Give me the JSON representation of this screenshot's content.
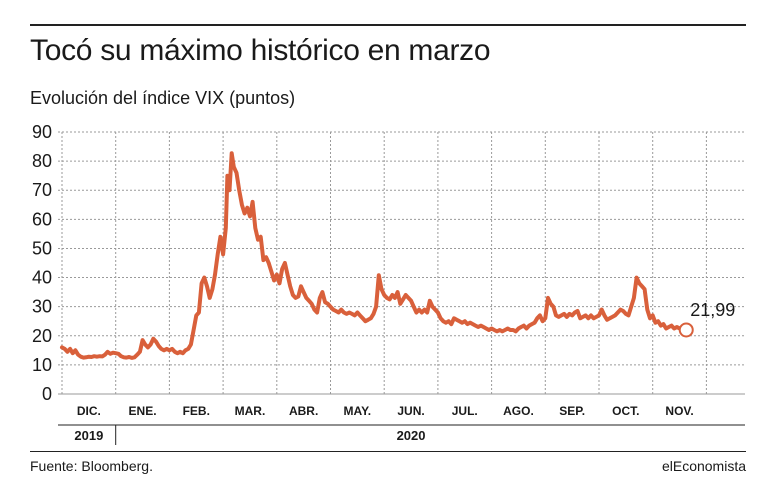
{
  "header": {
    "title": "Tocó su máximo histórico en marzo",
    "subtitle": "Evolución del índice VIX (puntos)"
  },
  "footer": {
    "source": "Fuente: Bloomberg.",
    "brand": "elEconomista"
  },
  "colors": {
    "line": "#d9603b",
    "grid": "#9a9a9a",
    "axis": "#222222"
  },
  "chart_data": {
    "type": "line",
    "title": "Tocó su máximo histórico en marzo",
    "subtitle": "Evolución del índice VIX (puntos)",
    "ylim": [
      0,
      90
    ],
    "yticks": [
      0,
      10,
      20,
      30,
      40,
      50,
      60,
      70,
      80,
      90
    ],
    "grid": "vertical dashed between months",
    "months": [
      "DIC.",
      "ENE.",
      "FEB.",
      "MAR.",
      "ABR.",
      "MAY.",
      "JUN.",
      "JUL.",
      "AGO.",
      "SEP.",
      "OCT.",
      "NOV."
    ],
    "years": [
      {
        "label": "2019",
        "from": 0,
        "to": 0
      },
      {
        "label": "2020",
        "from": 1,
        "to": 11
      }
    ],
    "series": [
      {
        "points": [
          [
            0.0,
            16.0
          ],
          [
            0.05,
            15.5
          ],
          [
            0.1,
            14.5
          ],
          [
            0.15,
            15.5
          ],
          [
            0.2,
            14.0
          ],
          [
            0.25,
            15.0
          ],
          [
            0.3,
            13.5
          ],
          [
            0.35,
            12.8
          ],
          [
            0.4,
            12.5
          ],
          [
            0.45,
            12.6
          ],
          [
            0.5,
            12.8
          ],
          [
            0.55,
            12.7
          ],
          [
            0.6,
            13.0
          ],
          [
            0.65,
            12.8
          ],
          [
            0.7,
            13.0
          ],
          [
            0.75,
            12.9
          ],
          [
            0.8,
            13.5
          ],
          [
            0.85,
            14.5
          ],
          [
            0.9,
            13.8
          ],
          [
            0.95,
            14.2
          ],
          [
            1.0,
            14.0
          ],
          [
            1.05,
            13.8
          ],
          [
            1.1,
            13.0
          ],
          [
            1.15,
            12.6
          ],
          [
            1.2,
            12.5
          ],
          [
            1.25,
            12.7
          ],
          [
            1.3,
            12.4
          ],
          [
            1.35,
            12.6
          ],
          [
            1.4,
            13.5
          ],
          [
            1.45,
            14.5
          ],
          [
            1.5,
            18.5
          ],
          [
            1.55,
            17.0
          ],
          [
            1.6,
            16.0
          ],
          [
            1.65,
            17.0
          ],
          [
            1.7,
            19.0
          ],
          [
            1.75,
            18.0
          ],
          [
            1.8,
            16.5
          ],
          [
            1.85,
            15.5
          ],
          [
            1.9,
            15.0
          ],
          [
            1.95,
            15.5
          ],
          [
            2.0,
            15.0
          ],
          [
            2.05,
            15.5
          ],
          [
            2.1,
            14.5
          ],
          [
            2.15,
            14.0
          ],
          [
            2.2,
            14.5
          ],
          [
            2.25,
            14.0
          ],
          [
            2.3,
            15.0
          ],
          [
            2.35,
            15.5
          ],
          [
            2.4,
            17.0
          ],
          [
            2.45,
            22.0
          ],
          [
            2.5,
            27.0
          ],
          [
            2.55,
            28.0
          ],
          [
            2.6,
            38.0
          ],
          [
            2.65,
            40.0
          ],
          [
            2.7,
            37.0
          ],
          [
            2.75,
            33.0
          ],
          [
            2.8,
            36.0
          ],
          [
            2.85,
            41.0
          ],
          [
            2.9,
            48.0
          ],
          [
            2.95,
            54.0
          ],
          [
            3.0,
            48.0
          ],
          [
            3.05,
            57.0
          ],
          [
            3.08,
            75.0
          ],
          [
            3.12,
            70.0
          ],
          [
            3.16,
            82.7
          ],
          [
            3.2,
            78.0
          ],
          [
            3.25,
            76.0
          ],
          [
            3.3,
            70.0
          ],
          [
            3.35,
            65.0
          ],
          [
            3.4,
            62.0
          ],
          [
            3.45,
            64.0
          ],
          [
            3.5,
            61.0
          ],
          [
            3.55,
            66.0
          ],
          [
            3.6,
            57.0
          ],
          [
            3.65,
            53.0
          ],
          [
            3.7,
            54.0
          ],
          [
            3.75,
            46.0
          ],
          [
            3.8,
            47.0
          ],
          [
            3.85,
            45.0
          ],
          [
            3.9,
            42.0
          ],
          [
            3.95,
            39.0
          ],
          [
            4.0,
            41.0
          ],
          [
            4.05,
            38.0
          ],
          [
            4.1,
            43.0
          ],
          [
            4.15,
            45.0
          ],
          [
            4.2,
            41.0
          ],
          [
            4.25,
            37.0
          ],
          [
            4.3,
            34.0
          ],
          [
            4.35,
            33.0
          ],
          [
            4.4,
            33.5
          ],
          [
            4.45,
            37.0
          ],
          [
            4.5,
            35.0
          ],
          [
            4.55,
            33.0
          ],
          [
            4.6,
            32.0
          ],
          [
            4.65,
            31.0
          ],
          [
            4.7,
            29.0
          ],
          [
            4.75,
            28.0
          ],
          [
            4.8,
            33.0
          ],
          [
            4.85,
            35.0
          ],
          [
            4.9,
            31.5
          ],
          [
            4.95,
            31.0
          ],
          [
            5.0,
            30.0
          ],
          [
            5.05,
            29.0
          ],
          [
            5.1,
            28.5
          ],
          [
            5.15,
            28.0
          ],
          [
            5.2,
            29.0
          ],
          [
            5.25,
            28.0
          ],
          [
            5.3,
            27.5
          ],
          [
            5.35,
            28.0
          ],
          [
            5.4,
            27.5
          ],
          [
            5.45,
            27.0
          ],
          [
            5.5,
            28.0
          ],
          [
            5.55,
            27.0
          ],
          [
            5.6,
            26.0
          ],
          [
            5.65,
            25.0
          ],
          [
            5.7,
            25.5
          ],
          [
            5.75,
            26.0
          ],
          [
            5.8,
            27.5
          ],
          [
            5.85,
            30.0
          ],
          [
            5.9,
            40.8
          ],
          [
            5.95,
            36.0
          ],
          [
            6.0,
            34.0
          ],
          [
            6.05,
            33.0
          ],
          [
            6.1,
            32.5
          ],
          [
            6.15,
            34.0
          ],
          [
            6.2,
            33.0
          ],
          [
            6.25,
            35.0
          ],
          [
            6.3,
            31.0
          ],
          [
            6.35,
            32.5
          ],
          [
            6.4,
            34.0
          ],
          [
            6.45,
            33.0
          ],
          [
            6.5,
            32.0
          ],
          [
            6.55,
            30.0
          ],
          [
            6.6,
            28.0
          ],
          [
            6.65,
            29.0
          ],
          [
            6.7,
            28.0
          ],
          [
            6.75,
            29.0
          ],
          [
            6.8,
            28.0
          ],
          [
            6.85,
            32.0
          ],
          [
            6.9,
            30.0
          ],
          [
            6.95,
            29.0
          ],
          [
            7.0,
            28.0
          ],
          [
            7.05,
            26.0
          ],
          [
            7.1,
            25.0
          ],
          [
            7.15,
            24.5
          ],
          [
            7.2,
            25.0
          ],
          [
            7.25,
            24.0
          ],
          [
            7.3,
            26.0
          ],
          [
            7.35,
            25.5
          ],
          [
            7.4,
            25.0
          ],
          [
            7.45,
            24.5
          ],
          [
            7.5,
            25.0
          ],
          [
            7.55,
            24.0
          ],
          [
            7.6,
            24.5
          ],
          [
            7.65,
            24.0
          ],
          [
            7.7,
            23.5
          ],
          [
            7.75,
            23.0
          ],
          [
            7.8,
            23.5
          ],
          [
            7.85,
            23.0
          ],
          [
            7.9,
            22.5
          ],
          [
            7.95,
            22.0
          ],
          [
            8.0,
            22.5
          ],
          [
            8.05,
            22.0
          ],
          [
            8.1,
            21.5
          ],
          [
            8.15,
            22.0
          ],
          [
            8.2,
            21.5
          ],
          [
            8.25,
            22.0
          ],
          [
            8.3,
            22.5
          ],
          [
            8.35,
            22.0
          ],
          [
            8.4,
            22.0
          ],
          [
            8.45,
            21.5
          ],
          [
            8.5,
            22.5
          ],
          [
            8.55,
            23.0
          ],
          [
            8.6,
            23.5
          ],
          [
            8.65,
            22.5
          ],
          [
            8.7,
            23.5
          ],
          [
            8.75,
            24.0
          ],
          [
            8.8,
            24.5
          ],
          [
            8.85,
            26.0
          ],
          [
            8.9,
            27.0
          ],
          [
            8.95,
            25.0
          ],
          [
            9.0,
            26.0
          ],
          [
            9.05,
            33.0
          ],
          [
            9.1,
            31.0
          ],
          [
            9.15,
            30.0
          ],
          [
            9.2,
            27.0
          ],
          [
            9.25,
            26.5
          ],
          [
            9.3,
            27.0
          ],
          [
            9.35,
            27.5
          ],
          [
            9.4,
            26.5
          ],
          [
            9.45,
            27.5
          ],
          [
            9.5,
            27.0
          ],
          [
            9.55,
            28.0
          ],
          [
            9.6,
            28.5
          ],
          [
            9.65,
            26.0
          ],
          [
            9.7,
            26.5
          ],
          [
            9.75,
            27.0
          ],
          [
            9.8,
            26.0
          ],
          [
            9.85,
            27.0
          ],
          [
            9.9,
            26.0
          ],
          [
            9.95,
            26.5
          ],
          [
            10.0,
            27.0
          ],
          [
            10.05,
            29.0
          ],
          [
            10.1,
            27.0
          ],
          [
            10.15,
            25.5
          ],
          [
            10.2,
            26.0
          ],
          [
            10.25,
            26.5
          ],
          [
            10.3,
            27.0
          ],
          [
            10.35,
            28.0
          ],
          [
            10.4,
            29.0
          ],
          [
            10.45,
            28.5
          ],
          [
            10.5,
            27.5
          ],
          [
            10.55,
            27.0
          ],
          [
            10.6,
            30.0
          ],
          [
            10.65,
            33.0
          ],
          [
            10.7,
            40.0
          ],
          [
            10.75,
            38.0
          ],
          [
            10.8,
            37.0
          ],
          [
            10.85,
            36.0
          ],
          [
            10.9,
            29.0
          ],
          [
            10.95,
            26.0
          ],
          [
            11.0,
            27.0
          ],
          [
            11.05,
            24.5
          ],
          [
            11.1,
            25.0
          ],
          [
            11.15,
            23.5
          ],
          [
            11.2,
            24.0
          ],
          [
            11.25,
            22.5
          ],
          [
            11.3,
            23.0
          ],
          [
            11.35,
            23.5
          ],
          [
            11.4,
            22.5
          ],
          [
            11.45,
            23.0
          ],
          [
            11.5,
            22.5
          ],
          [
            11.55,
            21.99
          ]
        ]
      }
    ],
    "end_value": 21.99,
    "end_label": "21,99"
  }
}
